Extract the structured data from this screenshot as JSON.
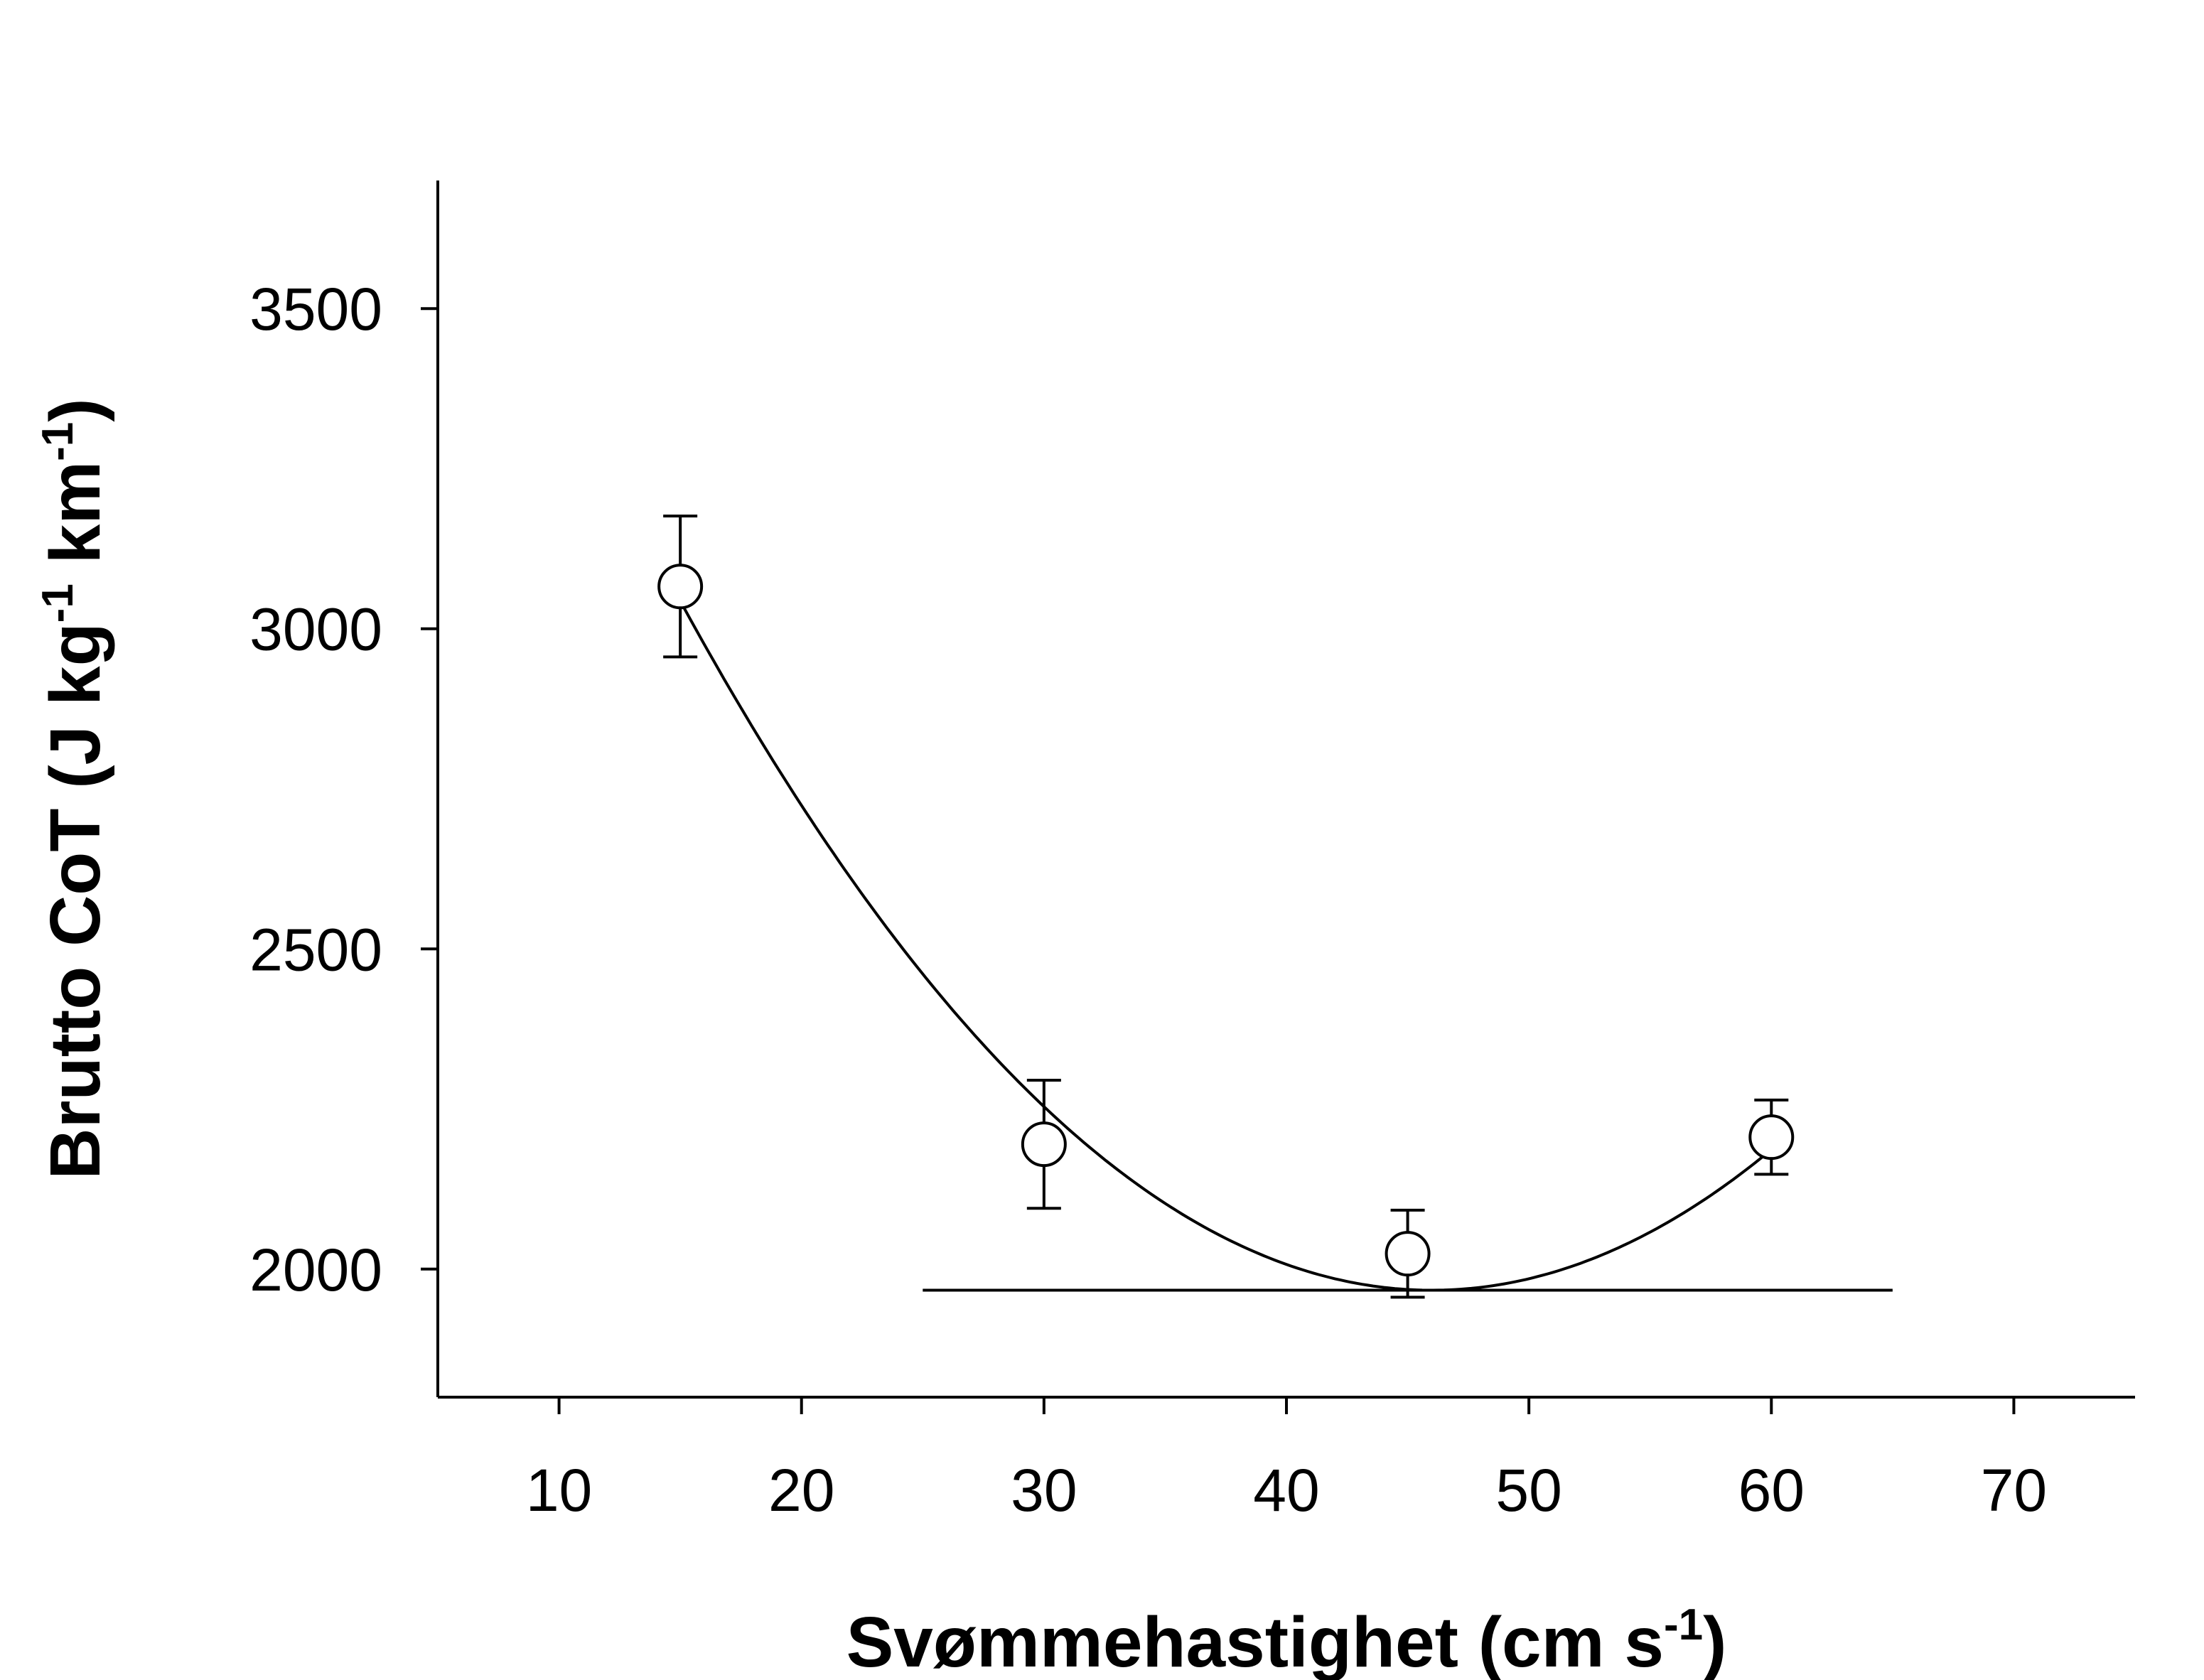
{
  "chart_data": {
    "type": "scatter",
    "title": "",
    "xlabel": "Svømmehastighet (cm s",
    "xlabel_sup": "-1",
    "xlabel_end": ")",
    "ylabel": "Brutto CoT (J kg",
    "ylabel_sup1": "-1",
    "ylabel_mid": " km",
    "ylabel_sup2": "-1",
    "ylabel_end": ")",
    "xlim": [
      5,
      75
    ],
    "ylim": [
      1800,
      3700
    ],
    "xticks": [
      10,
      20,
      30,
      40,
      50,
      60,
      70
    ],
    "yticks": [
      2000,
      2500,
      3000,
      3500
    ],
    "grid": false,
    "series": [
      {
        "name": "Brutto CoT",
        "marker": "open-circle",
        "x": [
          15,
          30,
          45,
          60
        ],
        "y": [
          3066,
          2195,
          2024,
          2206
        ],
        "error": [
          110,
          100,
          68,
          58
        ]
      }
    ],
    "fit_curve": {
      "type": "quadratic",
      "vertex_x": 46,
      "vertex_y": 1967,
      "a": 1.12,
      "x_range": [
        15,
        60
      ]
    },
    "reference_line": {
      "y": 1967,
      "x_range": [
        25,
        65
      ]
    },
    "colors": {
      "line": "#000000",
      "marker_fill": "#ffffff"
    }
  }
}
